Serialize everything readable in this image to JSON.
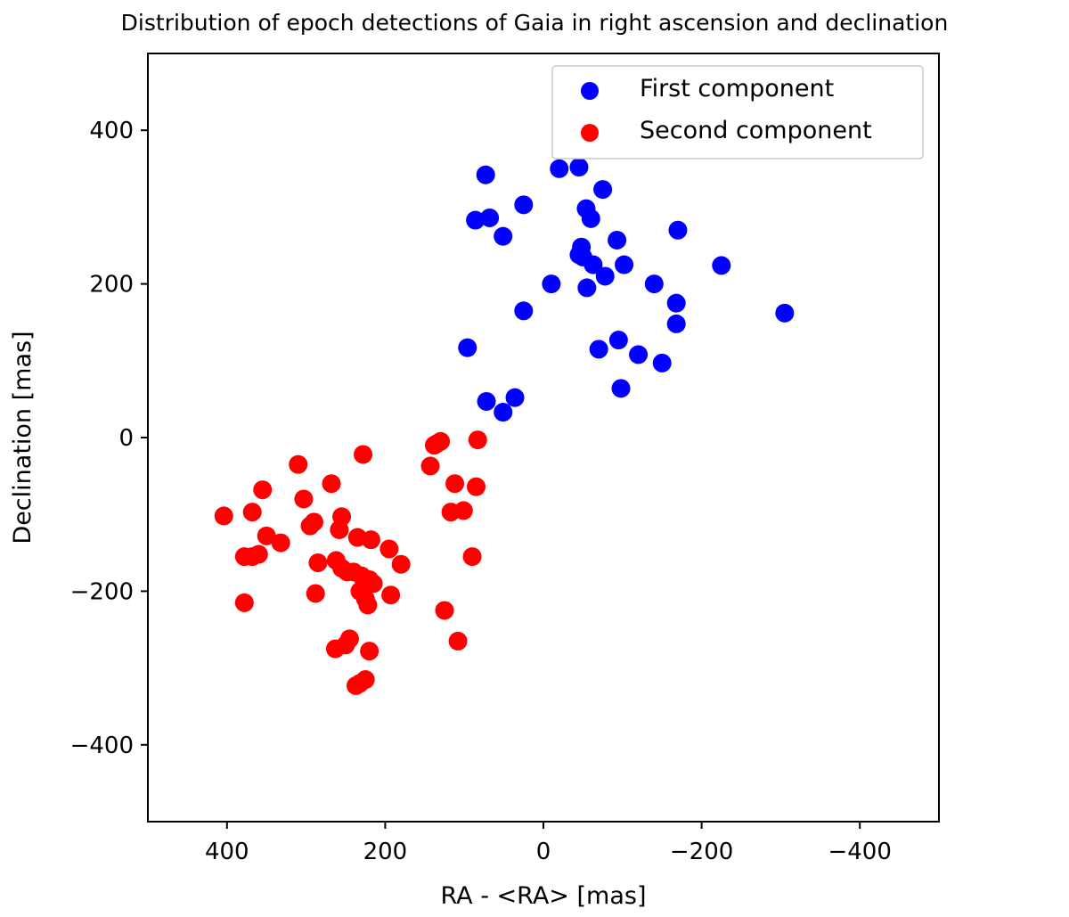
{
  "chart_data": {
    "type": "scatter",
    "title": "Distribution of epoch detections of Gaia in right ascension and declination",
    "xlabel": "RA - <RA> [mas]",
    "ylabel": "Declination [mas]",
    "xlim": [
      500,
      -500
    ],
    "ylim": [
      -500,
      500
    ],
    "x_ticks": [
      400,
      200,
      0,
      -200,
      -400
    ],
    "x_tick_labels": [
      "400",
      "200",
      "0",
      "−200",
      "−400"
    ],
    "y_ticks": [
      400,
      200,
      0,
      -200,
      -400
    ],
    "y_tick_labels": [
      "400",
      "200",
      "0",
      "−200",
      "−400"
    ],
    "grid": false,
    "legend_position": "top-right",
    "series": [
      {
        "name": "First component",
        "color": "#0000ff",
        "points": [
          [
            -20,
            350
          ],
          [
            -45,
            352
          ],
          [
            73,
            342
          ],
          [
            -75,
            323
          ],
          [
            25,
            303
          ],
          [
            86,
            283
          ],
          [
            68,
            286
          ],
          [
            -54,
            298
          ],
          [
            -60,
            285
          ],
          [
            -170,
            270
          ],
          [
            51,
            262
          ],
          [
            -225,
            224
          ],
          [
            -93,
            257
          ],
          [
            -45,
            238
          ],
          [
            -48,
            248
          ],
          [
            -50,
            235
          ],
          [
            -63,
            225
          ],
          [
            -102,
            225
          ],
          [
            -78,
            210
          ],
          [
            -10,
            200
          ],
          [
            -55,
            195
          ],
          [
            -140,
            200
          ],
          [
            -168,
            175
          ],
          [
            -168,
            148
          ],
          [
            -305,
            162
          ],
          [
            25,
            165
          ],
          [
            96,
            117
          ],
          [
            -70,
            115
          ],
          [
            -95,
            127
          ],
          [
            -120,
            108
          ],
          [
            -150,
            97
          ],
          [
            -98,
            64
          ],
          [
            72,
            47
          ],
          [
            36,
            52
          ],
          [
            51,
            33
          ]
        ]
      },
      {
        "name": "Second component",
        "color": "#ff0000",
        "points": [
          [
            138,
            -10
          ],
          [
            130,
            -5
          ],
          [
            135,
            -8
          ],
          [
            83,
            -3
          ],
          [
            228,
            -22
          ],
          [
            310,
            -35
          ],
          [
            143,
            -37
          ],
          [
            268,
            -60
          ],
          [
            355,
            -68
          ],
          [
            112,
            -60
          ],
          [
            85,
            -64
          ],
          [
            303,
            -80
          ],
          [
            368,
            -97
          ],
          [
            404,
            -102
          ],
          [
            117,
            -97
          ],
          [
            101,
            -95
          ],
          [
            255,
            -103
          ],
          [
            295,
            -115
          ],
          [
            290,
            -110
          ],
          [
            350,
            -128
          ],
          [
            258,
            -120
          ],
          [
            332,
            -137
          ],
          [
            235,
            -130
          ],
          [
            218,
            -133
          ],
          [
            195,
            -145
          ],
          [
            180,
            -165
          ],
          [
            378,
            -155
          ],
          [
            368,
            -155
          ],
          [
            360,
            -152
          ],
          [
            90,
            -155
          ],
          [
            285,
            -163
          ],
          [
            262,
            -160
          ],
          [
            255,
            -170
          ],
          [
            248,
            -175
          ],
          [
            240,
            -175
          ],
          [
            230,
            -180
          ],
          [
            220,
            -185
          ],
          [
            215,
            -190
          ],
          [
            232,
            -200
          ],
          [
            288,
            -203
          ],
          [
            193,
            -205
          ],
          [
            225,
            -210
          ],
          [
            222,
            -218
          ],
          [
            378,
            -215
          ],
          [
            125,
            -225
          ],
          [
            245,
            -262
          ],
          [
            263,
            -275
          ],
          [
            250,
            -270
          ],
          [
            220,
            -278
          ],
          [
            108,
            -265
          ],
          [
            225,
            -315
          ],
          [
            232,
            -320
          ],
          [
            237,
            -323
          ]
        ]
      }
    ]
  }
}
